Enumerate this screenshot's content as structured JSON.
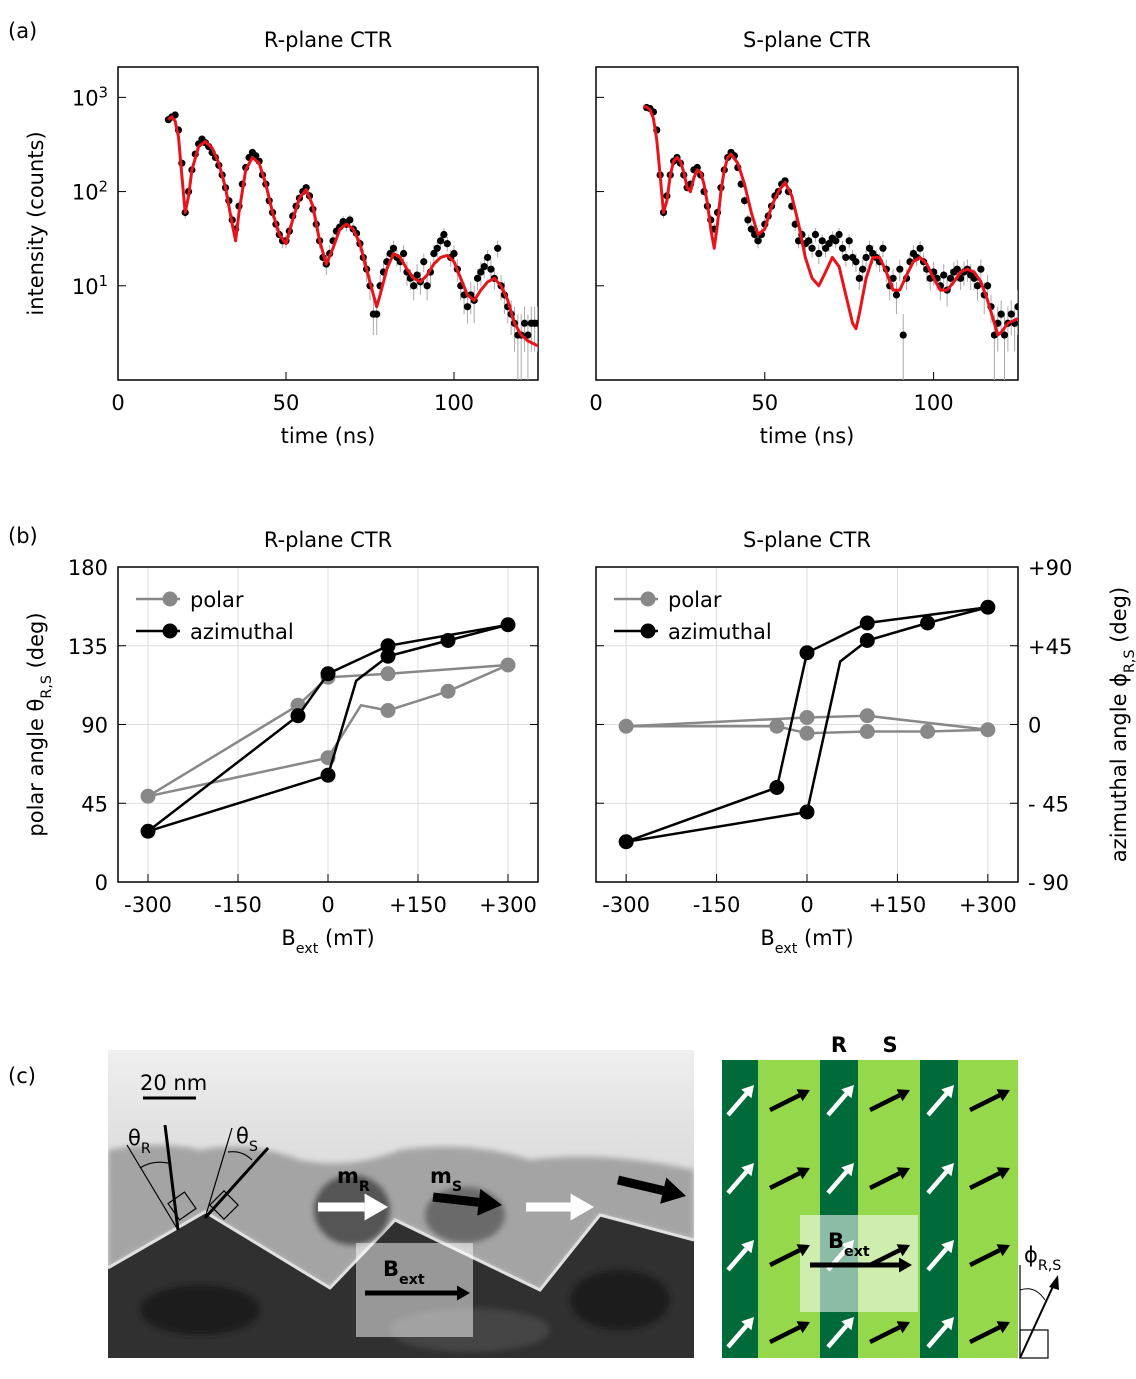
{
  "panels": [
    "(a)",
    "(b)",
    "(c)"
  ],
  "chart_data": [
    {
      "type": "scatter",
      "title": "R-plane CTR",
      "xlabel": "time (ns)",
      "ylabel": "intensity (counts)",
      "log_y": true,
      "xlim": [
        0,
        125
      ],
      "xticks": [
        0,
        50,
        100
      ],
      "ylim": [
        1,
        2100
      ],
      "yticks": [
        {
          "value": 10,
          "label": "10",
          "exponent": "1"
        },
        {
          "value": 100,
          "label": "10",
          "exponent": "2"
        },
        {
          "value": 1000,
          "label": "10",
          "exponent": "3"
        }
      ],
      "points": {
        "color": "#000000",
        "x": [
          15,
          16,
          17,
          18,
          19,
          20,
          21,
          22,
          23,
          24,
          25,
          26,
          27,
          28,
          29,
          30,
          31,
          32,
          33,
          34,
          35,
          36,
          37,
          38,
          39,
          40,
          41,
          42,
          43,
          44,
          45,
          46,
          47,
          48,
          49,
          50,
          51,
          52,
          53,
          54,
          55,
          56,
          57,
          58,
          59,
          60,
          61,
          62,
          63,
          64,
          65,
          66,
          67,
          68,
          69,
          70,
          71,
          72,
          73,
          74,
          75,
          76,
          77,
          78,
          79,
          80,
          81,
          82,
          83,
          84,
          85,
          86,
          87,
          88,
          89,
          90,
          91,
          92,
          93,
          94,
          95,
          96,
          97,
          98,
          99,
          100,
          101,
          102,
          103,
          104,
          105,
          106,
          107,
          108,
          109,
          110,
          111,
          112,
          113,
          114,
          115,
          116,
          117,
          118,
          119,
          120,
          121,
          122,
          123,
          124,
          125
        ],
        "values": [
          580,
          620,
          650,
          450,
          200,
          60,
          100,
          170,
          250,
          320,
          360,
          330,
          300,
          260,
          230,
          190,
          150,
          110,
          80,
          50,
          40,
          70,
          120,
          180,
          230,
          260,
          240,
          210,
          150,
          120,
          80,
          60,
          45,
          35,
          30,
          30,
          38,
          55,
          70,
          85,
          100,
          110,
          90,
          65,
          45,
          30,
          20,
          17,
          22,
          30,
          38,
          42,
          48,
          45,
          50,
          40,
          36,
          28,
          20,
          15,
          10,
          5,
          5,
          10,
          14,
          18,
          22,
          25,
          20,
          18,
          22,
          14,
          12,
          10,
          13,
          11,
          18,
          10,
          14,
          22,
          25,
          30,
          35,
          28,
          20,
          22,
          15,
          10,
          8,
          6,
          8,
          7,
          12,
          14,
          16,
          20,
          15,
          12,
          25,
          10,
          8,
          6,
          5,
          4,
          3,
          3,
          4,
          3,
          4,
          4,
          4
        ],
        "errors": [
          30,
          30,
          30,
          25,
          15,
          8,
          10,
          13,
          15,
          18,
          19,
          18,
          17,
          16,
          15,
          14,
          12,
          10,
          9,
          7,
          6,
          8,
          11,
          13,
          15,
          16,
          15,
          14,
          12,
          11,
          9,
          8,
          7,
          6,
          5,
          5,
          6,
          7,
          8,
          9,
          10,
          10,
          9,
          8,
          7,
          5,
          4,
          4,
          5,
          5,
          6,
          6,
          7,
          7,
          7,
          6,
          6,
          5,
          4,
          4,
          3,
          2,
          2,
          3,
          4,
          4,
          5,
          5,
          4,
          4,
          5,
          4,
          3,
          3,
          4,
          3,
          4,
          3,
          4,
          5,
          5,
          5,
          6,
          5,
          4,
          5,
          4,
          3,
          3,
          2,
          3,
          3,
          3,
          4,
          4,
          4,
          4,
          3,
          5,
          3,
          3,
          2,
          2,
          2,
          2,
          2,
          2,
          2,
          2,
          2,
          2
        ]
      },
      "fit": {
        "color": "#e8141c",
        "x": [
          15,
          16,
          17,
          18,
          19,
          20,
          21,
          22,
          24,
          26,
          28,
          30,
          32,
          34,
          35,
          36,
          38,
          40,
          42,
          44,
          46,
          48,
          50,
          52,
          54,
          56,
          58,
          60,
          62,
          64,
          66,
          68,
          70,
          72,
          74,
          76,
          77,
          78,
          80,
          82,
          84,
          86,
          88,
          90,
          92,
          94,
          96,
          98,
          100,
          102,
          104,
          106,
          108,
          110,
          112,
          114,
          116,
          118,
          120,
          122,
          125
        ],
        "values": [
          580,
          620,
          560,
          380,
          150,
          60,
          90,
          170,
          300,
          340,
          290,
          200,
          110,
          45,
          30,
          60,
          170,
          230,
          200,
          120,
          60,
          35,
          28,
          50,
          85,
          105,
          70,
          30,
          17,
          25,
          40,
          45,
          40,
          28,
          15,
          8,
          6,
          8,
          15,
          22,
          20,
          15,
          12,
          11,
          13,
          17,
          20,
          21,
          18,
          12,
          8,
          7,
          9,
          11,
          12,
          10,
          7,
          4,
          3,
          2.6,
          2.3
        ]
      }
    },
    {
      "type": "scatter",
      "title": "S-plane CTR",
      "xlabel": "time (ns)",
      "log_y": true,
      "yticklabels": false,
      "xlim": [
        0,
        125
      ],
      "xticks": [
        0,
        50,
        100
      ],
      "ylim": [
        1,
        2100
      ],
      "yticks": [
        10,
        100,
        1000
      ],
      "points": {
        "color": "#000000",
        "x": [
          15,
          16,
          17,
          18,
          19,
          20,
          21,
          22,
          23,
          24,
          25,
          26,
          27,
          28,
          29,
          30,
          31,
          32,
          33,
          34,
          35,
          36,
          37,
          38,
          39,
          40,
          41,
          42,
          43,
          44,
          45,
          46,
          47,
          48,
          49,
          50,
          51,
          52,
          53,
          54,
          55,
          56,
          57,
          58,
          59,
          60,
          61,
          62,
          63,
          64,
          65,
          66,
          67,
          68,
          69,
          70,
          71,
          72,
          73,
          74,
          75,
          76,
          77,
          78,
          79,
          80,
          81,
          82,
          83,
          84,
          85,
          86,
          87,
          88,
          89,
          90,
          91,
          92,
          93,
          94,
          95,
          96,
          97,
          98,
          99,
          100,
          101,
          102,
          103,
          104,
          105,
          106,
          107,
          108,
          109,
          110,
          111,
          112,
          113,
          114,
          115,
          116,
          117,
          118,
          119,
          120,
          121,
          122,
          123,
          124,
          125
        ],
        "values": [
          780,
          760,
          700,
          450,
          150,
          60,
          90,
          150,
          210,
          230,
          200,
          150,
          110,
          120,
          170,
          180,
          150,
          100,
          70,
          50,
          40,
          60,
          110,
          170,
          230,
          260,
          240,
          180,
          120,
          80,
          50,
          40,
          35,
          30,
          35,
          45,
          55,
          70,
          90,
          100,
          120,
          130,
          100,
          70,
          45,
          30,
          35,
          28,
          30,
          25,
          35,
          22,
          30,
          25,
          28,
          32,
          30,
          35,
          25,
          20,
          30,
          20,
          18,
          12,
          15,
          20,
          25,
          22,
          20,
          18,
          25,
          15,
          10,
          12,
          8,
          15,
          3,
          12,
          18,
          22,
          20,
          25,
          18,
          15,
          12,
          14,
          12,
          10,
          13,
          9,
          12,
          14,
          15,
          12,
          14,
          15,
          13,
          12,
          10,
          15,
          8,
          10,
          6,
          3,
          4,
          5,
          3,
          4,
          5,
          4,
          6
        ],
        "errors": [
          30,
          30,
          28,
          25,
          13,
          8,
          10,
          12,
          15,
          15,
          14,
          12,
          10,
          11,
          13,
          14,
          12,
          10,
          8,
          7,
          6,
          8,
          10,
          13,
          15,
          16,
          15,
          14,
          11,
          9,
          7,
          6,
          6,
          5,
          6,
          7,
          7,
          8,
          9,
          10,
          11,
          11,
          10,
          8,
          7,
          5,
          6,
          5,
          5,
          5,
          6,
          5,
          5,
          5,
          5,
          6,
          5,
          6,
          5,
          4,
          5,
          4,
          4,
          3,
          4,
          4,
          5,
          5,
          4,
          4,
          5,
          4,
          3,
          3,
          3,
          4,
          2,
          3,
          4,
          5,
          4,
          5,
          4,
          4,
          3,
          4,
          3,
          3,
          4,
          3,
          3,
          4,
          4,
          3,
          4,
          4,
          4,
          3,
          3,
          4,
          3,
          3,
          2,
          2,
          2,
          2,
          2,
          2,
          2,
          2,
          3
        ]
      },
      "fit": {
        "color": "#e8141c",
        "x": [
          14,
          15,
          16,
          17,
          18,
          19,
          20,
          21,
          22,
          23,
          24,
          25,
          26,
          27,
          28,
          29,
          30,
          31,
          32,
          33,
          34,
          35,
          36,
          37,
          38,
          39,
          40,
          42,
          44,
          46,
          48,
          50,
          52,
          54,
          56,
          58,
          60,
          62,
          64,
          66,
          68,
          70,
          72,
          74,
          76,
          77,
          78,
          80,
          82,
          84,
          86,
          88,
          90,
          92,
          94,
          96,
          98,
          100,
          102,
          104,
          106,
          108,
          110,
          112,
          114,
          116,
          118,
          119,
          120,
          122,
          125
        ],
        "values": [
          800,
          790,
          740,
          600,
          350,
          150,
          60,
          80,
          150,
          210,
          230,
          210,
          160,
          110,
          100,
          140,
          170,
          160,
          120,
          75,
          40,
          25,
          45,
          100,
          170,
          230,
          250,
          200,
          120,
          60,
          35,
          40,
          70,
          100,
          125,
          90,
          45,
          20,
          12,
          10,
          14,
          20,
          16,
          8,
          4,
          3.5,
          5,
          12,
          20,
          20,
          14,
          9,
          9,
          13,
          18,
          20,
          17,
          12,
          9,
          9,
          11,
          14,
          15,
          14,
          11,
          7,
          4,
          3,
          3.2,
          4,
          4.5
        ]
      }
    },
    {
      "type": "line",
      "title": "R-plane CTR",
      "xlabel": [
        "B",
        "ext",
        " (mT)"
      ],
      "ylabel": [
        "polar angle θ",
        "R,S",
        " (deg)"
      ],
      "ycolor": "#777777",
      "grid": true,
      "legend": "upper left",
      "y2ticklabels": false,
      "xlim": [
        -350,
        350
      ],
      "xticks": [
        -300,
        -150,
        0,
        {
          "value": 150,
          "label": "+150"
        },
        {
          "value": 300,
          "label": "+300"
        }
      ],
      "ylim": [
        0,
        180
      ],
      "yticks": [
        0,
        45,
        90,
        135,
        180
      ],
      "y2lim": [
        -90,
        90
      ],
      "y2ticks": [
        -90,
        -45,
        0,
        45,
        90
      ],
      "series": [
        {
          "name": "polar",
          "color": "#888888",
          "x": [
            -300,
            -50,
            0,
            100,
            300,
            200,
            100,
            55,
            0,
            -300
          ],
          "values": [
            49,
            101,
            117,
            119,
            124,
            109,
            98,
            101,
            71,
            49
          ],
          "markers": [
            true,
            true,
            true,
            true,
            true,
            true,
            true,
            false,
            true,
            false
          ]
        },
        {
          "name": "azimuthal",
          "color": "#000000",
          "axis": "y2",
          "x": [
            -300,
            -50,
            0,
            100,
            300,
            200,
            100,
            47,
            0,
            -300
          ],
          "values": [
            -61,
            5,
            29,
            45,
            57,
            48,
            39,
            25,
            -29,
            -61
          ],
          "markers": [
            true,
            true,
            true,
            true,
            true,
            true,
            true,
            false,
            true,
            false
          ]
        }
      ]
    },
    {
      "type": "line",
      "title": "S-plane CTR",
      "xlabel": [
        "B",
        "ext",
        " (mT)"
      ],
      "y2label": [
        "azimuthal angle ϕ",
        "R,S",
        " (deg)"
      ],
      "grid": true,
      "legend": "upper left",
      "yticklabels": false,
      "xlim": [
        -350,
        350
      ],
      "xticks": [
        -300,
        -150,
        0,
        {
          "value": 150,
          "label": "+150"
        },
        {
          "value": 300,
          "label": "+300"
        }
      ],
      "ylim": [
        0,
        180
      ],
      "yticks": [
        0,
        45,
        90,
        135,
        180
      ],
      "y2lim": [
        -90,
        90
      ],
      "y2ticks": [
        {
          "value": -90,
          "label": "- 90"
        },
        {
          "value": -45,
          "label": "- 45"
        },
        0,
        {
          "value": 45,
          "label": "+45"
        },
        {
          "value": 90,
          "label": "+90"
        }
      ],
      "series": [
        {
          "name": "polar",
          "color": "#888888",
          "x": [
            -300,
            -50,
            0,
            100,
            200,
            300,
            100,
            0,
            -300
          ],
          "values": [
            89,
            89,
            85,
            86,
            86,
            87,
            95,
            94,
            89
          ],
          "markers": [
            true,
            true,
            true,
            true,
            true,
            true,
            true,
            true,
            false
          ]
        },
        {
          "name": "azimuthal",
          "color": "#000000",
          "axis": "y2",
          "x": [
            -300,
            -50,
            0,
            100,
            300,
            200,
            100,
            55,
            0,
            -300
          ],
          "values": [
            -67,
            -36,
            41,
            58,
            67,
            58,
            48,
            36,
            -50,
            -67
          ],
          "markers": [
            true,
            true,
            true,
            true,
            true,
            true,
            true,
            false,
            true,
            false
          ]
        }
      ]
    }
  ],
  "panel_c": {
    "scale_bar": "20 nm",
    "theta_R": [
      "θ",
      "R"
    ],
    "theta_S": [
      "θ",
      "S"
    ],
    "m_R": [
      "m",
      "R"
    ],
    "m_S": [
      "m",
      "S"
    ],
    "B_ext": [
      "B",
      "ext"
    ],
    "stripes": [
      "R",
      "S"
    ],
    "phi": [
      "ϕ",
      "R,S"
    ]
  }
}
